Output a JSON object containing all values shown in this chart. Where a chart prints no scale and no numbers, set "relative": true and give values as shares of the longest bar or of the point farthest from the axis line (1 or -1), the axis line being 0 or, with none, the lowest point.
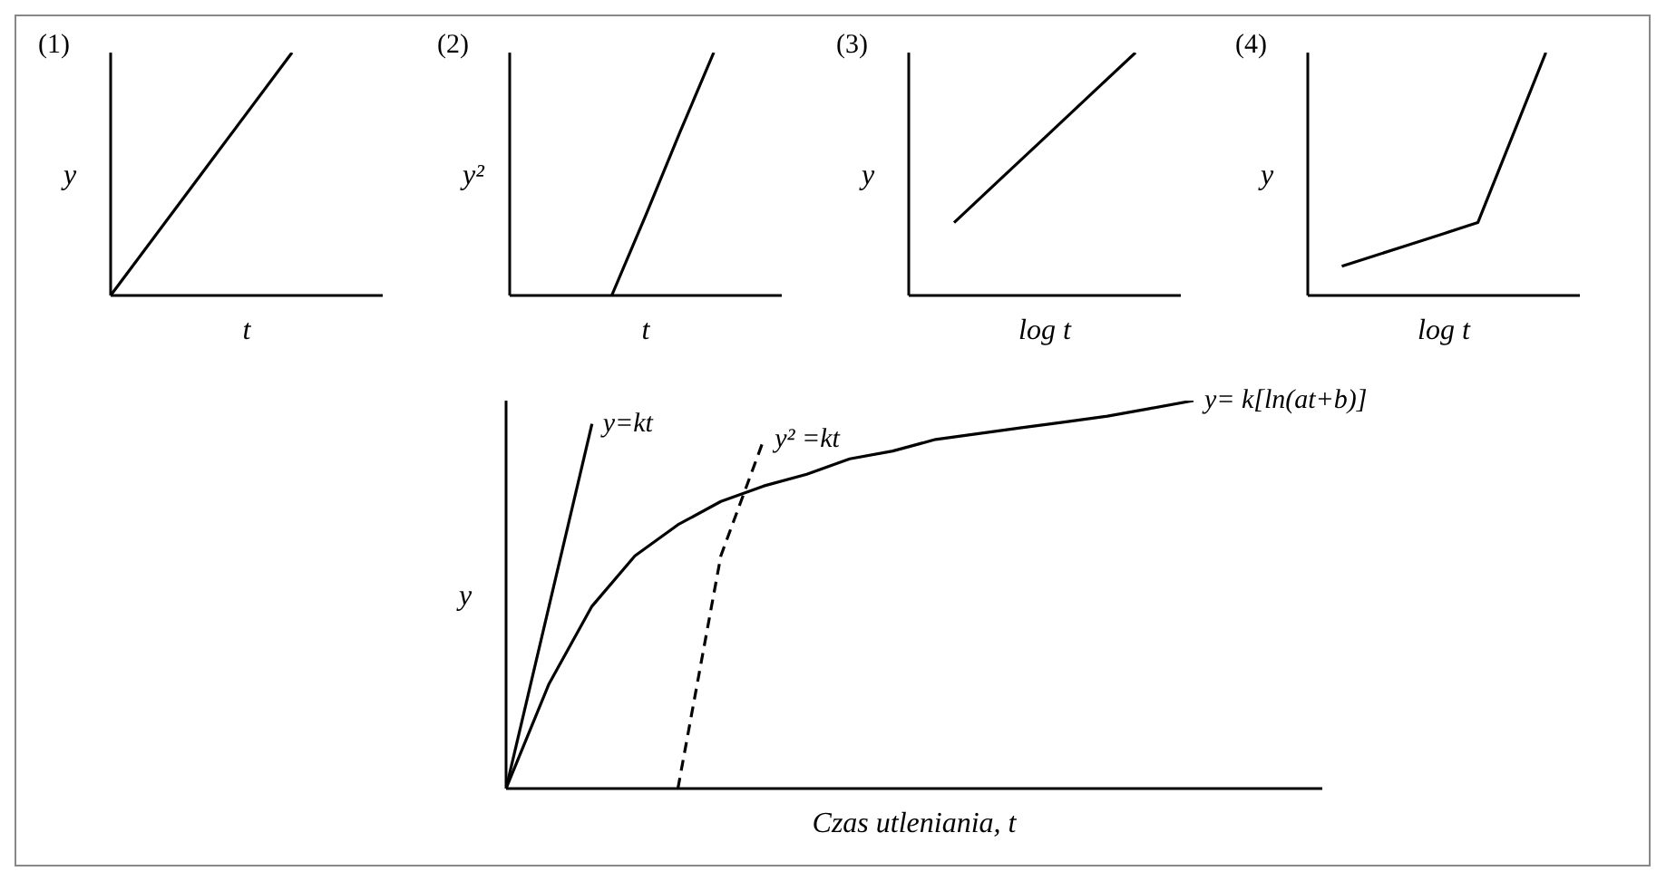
{
  "chart_data": [
    {
      "type": "line",
      "title": "(1)",
      "xlabel": "t",
      "ylabel": "y",
      "relative": true,
      "marker": "none",
      "categories": [
        null,
        null,
        null,
        null
      ],
      "series": [
        {
          "color": "#000000",
          "values": [
            0,
            0.5,
            1,
            null
          ]
        }
      ]
    },
    {
      "type": "line",
      "title": "(2)",
      "xlabel": "t",
      "ylabel": "y²",
      "relative": true,
      "marker": "none",
      "categories": [
        null,
        null,
        null,
        null,
        null,
        null,
        null,
        null,
        null
      ],
      "series": [
        {
          "color": "#000000",
          "values": [
            null,
            null,
            null,
            0,
            0.33,
            0.67,
            1,
            null,
            null
          ]
        }
      ]
    },
    {
      "type": "line",
      "title": "(3)",
      "xlabel": "log t",
      "ylabel": "y",
      "relative": true,
      "marker": "none",
      "categories": [
        null,
        null,
        null,
        null,
        null,
        null,
        null
      ],
      "series": [
        {
          "color": "#000000",
          "values": [
            null,
            0.3,
            0.475,
            0.65,
            0.825,
            1,
            null
          ]
        }
      ]
    },
    {
      "type": "line",
      "title": "(4)",
      "xlabel": "log t",
      "ylabel": "y",
      "relative": true,
      "marker": "none",
      "categories": [
        null,
        null,
        null,
        null,
        null,
        null,
        null,
        null,
        null
      ],
      "series": [
        {
          "color": "#000000",
          "values": [
            null,
            0.12,
            0.165,
            0.21,
            0.255,
            0.3,
            0.65,
            1,
            null
          ]
        }
      ]
    },
    {
      "type": "line",
      "xlabel": "Czas utleniania,   t",
      "ylabel": "y",
      "relative": true,
      "marker": "none",
      "categories": [
        null,
        null,
        null,
        null,
        null,
        null,
        null,
        null,
        null,
        null,
        null,
        null,
        null,
        null,
        null,
        null,
        null,
        null,
        null,
        null
      ],
      "series": [
        {
          "name": "y=kt",
          "color": "#000000",
          "values": [
            0,
            0.47,
            0.94,
            null,
            null,
            null,
            null,
            null,
            null,
            null,
            null,
            null,
            null,
            null,
            null,
            null,
            null,
            null,
            null,
            null
          ]
        },
        {
          "name": "y² =kt",
          "color": "#000000",
          "line_style": "dashed",
          "values": [
            null,
            null,
            null,
            null,
            0,
            0.6,
            0.9,
            null,
            null,
            null,
            null,
            null,
            null,
            null,
            null,
            null,
            null,
            null,
            null,
            null
          ]
        },
        {
          "name": "y= k[ln(at+b)]",
          "color": "#000000",
          "values": [
            0,
            0.27,
            0.47,
            0.6,
            0.68,
            0.74,
            0.78,
            0.81,
            0.85,
            0.87,
            0.9,
            0.915,
            0.93,
            0.945,
            0.96,
            0.98,
            1,
            null,
            null,
            null
          ]
        }
      ]
    }
  ]
}
